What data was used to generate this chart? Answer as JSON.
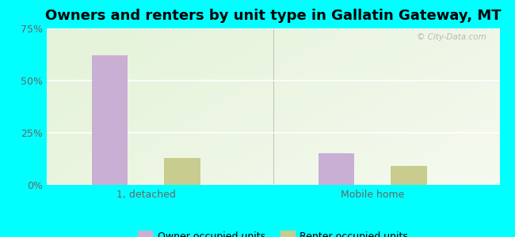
{
  "title": "Owners and renters by unit type in Gallatin Gateway, MT",
  "categories": [
    "1, detached",
    "Mobile home"
  ],
  "owner_values": [
    62,
    15
  ],
  "renter_values": [
    13,
    9
  ],
  "owner_color": "#c9afd4",
  "renter_color": "#c8cc8e",
  "bar_width": 0.08,
  "group_positions": [
    0.22,
    0.72
  ],
  "ylim": [
    0,
    75
  ],
  "yticks": [
    0,
    25,
    50,
    75
  ],
  "ytick_labels": [
    "0%",
    "25%",
    "50%",
    "75%"
  ],
  "bg_outer": "#00ffff",
  "legend_owner": "Owner occupied units",
  "legend_renter": "Renter occupied units",
  "title_fontsize": 13,
  "watermark": "© City-Data.com"
}
